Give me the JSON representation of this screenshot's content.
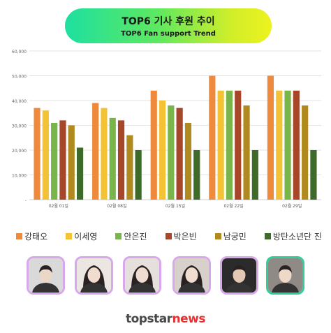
{
  "header": {
    "title": "TOP6 기사 후원 추이",
    "subtitle": "TOP6 Fan support Trend"
  },
  "chart_data": {
    "type": "bar",
    "categories": [
      "02월 01일",
      "02월 08일",
      "02월 15일",
      "02월 22일",
      "02월 29일"
    ],
    "ylim": [
      0,
      60000
    ],
    "yticks": [
      "-",
      "10,000",
      "20,000",
      "30,000",
      "40,000",
      "50,000",
      "60,000"
    ],
    "grid": true,
    "legend_position": "bottom",
    "series": [
      {
        "name": "강태오",
        "color": "#ef8a3c",
        "values": [
          37000,
          39000,
          44000,
          50000,
          50000
        ]
      },
      {
        "name": "이세영",
        "color": "#f4c235",
        "values": [
          36000,
          37000,
          40000,
          44000,
          44000
        ]
      },
      {
        "name": "안은진",
        "color": "#7ab54c",
        "values": [
          31000,
          33000,
          38000,
          44000,
          44000
        ]
      },
      {
        "name": "박은빈",
        "color": "#a8462a",
        "values": [
          32000,
          32000,
          37000,
          44000,
          44000
        ]
      },
      {
        "name": "남궁민",
        "color": "#b08a1e",
        "values": [
          30000,
          26000,
          31000,
          38000,
          38000
        ]
      },
      {
        "name": "방탄소년단 진",
        "color": "#3f6b2a",
        "values": [
          21000,
          20000,
          20000,
          20000,
          20000
        ]
      }
    ]
  },
  "photos": [
    {
      "icon": "actor-photo-icon",
      "border": "#d9a7ec"
    },
    {
      "icon": "actress-photo-icon",
      "border": "#d9a7ec"
    },
    {
      "icon": "actress-photo-icon",
      "border": "#d9a7ec"
    },
    {
      "icon": "actress-photo-icon",
      "border": "#d9a7ec"
    },
    {
      "icon": "actor-photo-icon",
      "border": "#d9a7ec"
    },
    {
      "icon": "singer-photo-icon",
      "border": "#2fcf9a"
    }
  ],
  "footer": {
    "brand_a": "topstar",
    "brand_b": "news"
  }
}
